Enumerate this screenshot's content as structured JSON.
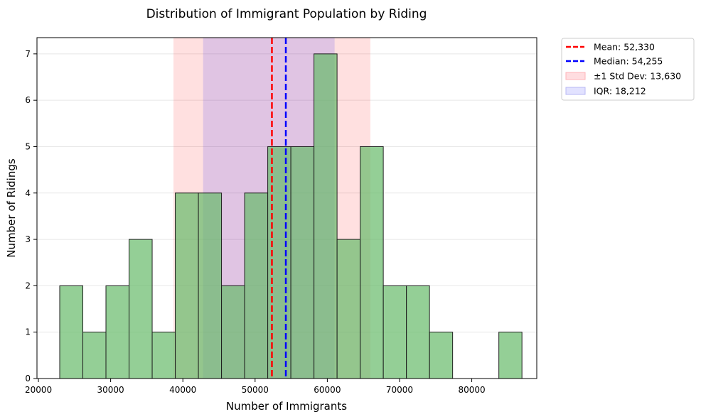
{
  "chart_data": {
    "type": "bar",
    "title": "Distribution of Immigrant Population by Riding",
    "xlabel": "Number of Immigrants",
    "ylabel": "Number of Ridings",
    "xlim": [
      19800,
      89000
    ],
    "ylim": [
      0,
      7.35
    ],
    "x_ticks": [
      20000,
      30000,
      40000,
      50000,
      60000,
      70000,
      80000
    ],
    "y_ticks": [
      0,
      1,
      2,
      3,
      4,
      5,
      6,
      7
    ],
    "grid": "y",
    "legend_placement": "outside-top-right",
    "bins": [
      {
        "start": 22950,
        "end": 26150,
        "count": 2
      },
      {
        "start": 26150,
        "end": 29350,
        "count": 1
      },
      {
        "start": 29350,
        "end": 32550,
        "count": 2
      },
      {
        "start": 32550,
        "end": 35750,
        "count": 3
      },
      {
        "start": 35750,
        "end": 38950,
        "count": 1
      },
      {
        "start": 38950,
        "end": 42150,
        "count": 4
      },
      {
        "start": 42150,
        "end": 45350,
        "count": 4
      },
      {
        "start": 45350,
        "end": 48550,
        "count": 2
      },
      {
        "start": 48550,
        "end": 51750,
        "count": 4
      },
      {
        "start": 51750,
        "end": 54950,
        "count": 5
      },
      {
        "start": 54950,
        "end": 58150,
        "count": 5
      },
      {
        "start": 58150,
        "end": 61350,
        "count": 7
      },
      {
        "start": 61350,
        "end": 64550,
        "count": 3
      },
      {
        "start": 64550,
        "end": 67750,
        "count": 5
      },
      {
        "start": 67750,
        "end": 70950,
        "count": 2
      },
      {
        "start": 70950,
        "end": 74150,
        "count": 2
      },
      {
        "start": 74150,
        "end": 77350,
        "count": 1
      },
      {
        "start": 77350,
        "end": 80550,
        "count": 0
      },
      {
        "start": 80550,
        "end": 83750,
        "count": 0
      },
      {
        "start": 83750,
        "end": 86950,
        "count": 1
      }
    ],
    "mean": 52330,
    "median": 54255,
    "std_band": [
      38700,
      65960
    ],
    "iqr_band": [
      42800,
      61010
    ],
    "legend": [
      {
        "label": "Mean: 52,330",
        "kind": "line",
        "color": "#ff0000"
      },
      {
        "label": "Median: 54,255",
        "kind": "line",
        "color": "#0000ff"
      },
      {
        "label": "±1 Std Dev: 13,630",
        "kind": "patch",
        "color": "#ffdde0",
        "edge": "#ffb3b8"
      },
      {
        "label": "IQR: 18,212",
        "kind": "patch",
        "color": "#e2e2ff",
        "edge": "#b8b8f5"
      }
    ],
    "colors": {
      "bar": "#66bb6a",
      "bar_edge": "#1f1f1f",
      "std_band": "#ff0000",
      "iqr_band": "#0000ff",
      "grid": "#e8e8e8"
    }
  }
}
